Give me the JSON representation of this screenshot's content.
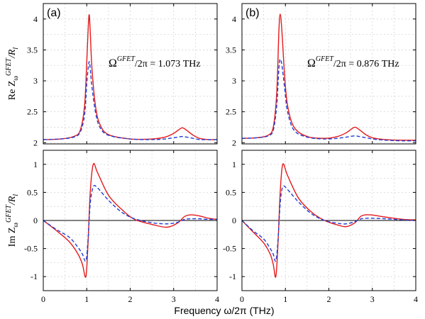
{
  "chart_data": {
    "type": "line",
    "xlabel": "Frequency ω/2π (THz)",
    "x_ticks": [
      "0",
      "1",
      "2",
      "3",
      "4"
    ],
    "xlim": [
      0,
      4
    ],
    "grid": true,
    "colors": {
      "solid": "#e41a1c",
      "dashed": "#1f3fd6",
      "zero_line": "#000000"
    },
    "rows": [
      {
        "ylabel_main": "Re Z",
        "ylabel_sub": "ω",
        "ylabel_sup": "GFET",
        "ylabel_tail": "/R",
        "ylabel_tail_sub": "l",
        "ylim": [
          1.98,
          4.25
        ],
        "y_ticks": [
          2,
          2.5,
          3,
          3.5,
          4
        ],
        "y_tick_labels": [
          "2",
          "2.5",
          "3",
          "3.5",
          "4"
        ],
        "zero_line": false
      },
      {
        "ylabel_main": "Im Z",
        "ylabel_sub": "ω",
        "ylabel_sup": "GFET",
        "ylabel_tail": "/R",
        "ylabel_tail_sub": "l",
        "ylim": [
          -1.25,
          1.25
        ],
        "y_ticks": [
          -1,
          -0.5,
          0,
          0.5,
          1
        ],
        "y_tick_labels": [
          "-1",
          "-0.5",
          "0",
          "0.5",
          "1"
        ],
        "zero_line": true
      }
    ],
    "panels": [
      {
        "label": "(a)",
        "annotation": "Ω",
        "annotation_sup": "GFET",
        "annotation_tail": "/2π = 1.073 THz",
        "re": {
          "x": [
            0,
            0.4,
            0.7,
            0.85,
            0.95,
            1.0,
            1.05,
            1.08,
            1.12,
            1.2,
            1.3,
            1.5,
            2.0,
            2.5,
            2.8,
            3.0,
            3.1,
            3.2,
            3.3,
            3.45,
            3.6,
            3.8,
            4.0
          ],
          "series": [
            {
              "name": "",
              "style": "solid",
              "values": [
                2.05,
                2.06,
                2.1,
                2.2,
                2.6,
                3.3,
                4.05,
                3.8,
                3.2,
                2.6,
                2.3,
                2.13,
                2.06,
                2.06,
                2.09,
                2.15,
                2.2,
                2.24,
                2.2,
                2.12,
                2.07,
                2.05,
                2.05
              ]
            },
            {
              "name": "",
              "style": "dashed",
              "values": [
                2.05,
                2.06,
                2.09,
                2.17,
                2.45,
                2.95,
                3.3,
                3.2,
                2.9,
                2.5,
                2.25,
                2.12,
                2.06,
                2.05,
                2.06,
                2.08,
                2.09,
                2.1,
                2.09,
                2.07,
                2.05,
                2.05,
                2.05
              ]
            }
          ]
        },
        "im": {
          "x": [
            0,
            0.3,
            0.6,
            0.8,
            0.9,
            0.98,
            1.03,
            1.08,
            1.15,
            1.25,
            1.5,
            1.8,
            2.1,
            2.5,
            2.85,
            3.1,
            3.25,
            3.4,
            3.6,
            3.8,
            4.0
          ],
          "series": [
            {
              "name": "",
              "style": "solid",
              "values": [
                0,
                -0.18,
                -0.38,
                -0.6,
                -0.78,
                -1.0,
                -0.4,
                0.5,
                1.0,
                0.85,
                0.45,
                0.2,
                0.02,
                -0.07,
                -0.12,
                -0.04,
                0.07,
                0.1,
                0.08,
                0.04,
                0.02
              ]
            },
            {
              "name": "",
              "style": "dashed",
              "values": [
                0,
                -0.16,
                -0.3,
                -0.48,
                -0.6,
                -0.72,
                -0.35,
                0.3,
                0.6,
                0.58,
                0.36,
                0.15,
                0.03,
                -0.04,
                -0.06,
                -0.03,
                0.02,
                0.03,
                0.03,
                0.02,
                0.02
              ]
            }
          ]
        }
      },
      {
        "label": "(b)",
        "annotation": "Ω",
        "annotation_sup": "GFET",
        "annotation_tail": "/2π = 0.876 THz",
        "re": {
          "x": [
            0,
            0.35,
            0.6,
            0.72,
            0.8,
            0.85,
            0.88,
            0.92,
            0.98,
            1.05,
            1.2,
            1.5,
            1.9,
            2.2,
            2.4,
            2.5,
            2.6,
            2.7,
            2.85,
            3.0,
            3.3,
            3.7,
            4.0
          ],
          "series": [
            {
              "name": "",
              "style": "solid",
              "values": [
                2.07,
                2.08,
                2.12,
                2.25,
                2.8,
                3.8,
                4.08,
                3.8,
                3.1,
                2.6,
                2.25,
                2.1,
                2.07,
                2.1,
                2.16,
                2.21,
                2.25,
                2.21,
                2.13,
                2.08,
                2.05,
                2.04,
                2.04
              ]
            },
            {
              "name": "",
              "style": "dashed",
              "values": [
                2.07,
                2.08,
                2.11,
                2.2,
                2.6,
                3.2,
                3.35,
                3.25,
                2.9,
                2.5,
                2.2,
                2.09,
                2.06,
                2.07,
                2.09,
                2.1,
                2.11,
                2.1,
                2.08,
                2.06,
                2.04,
                2.03,
                2.03
              ]
            }
          ]
        },
        "im": {
          "x": [
            0,
            0.25,
            0.5,
            0.65,
            0.72,
            0.78,
            0.83,
            0.88,
            0.94,
            1.05,
            1.3,
            1.6,
            1.9,
            2.2,
            2.4,
            2.6,
            2.75,
            2.95,
            3.3,
            3.7,
            4.0
          ],
          "series": [
            {
              "name": "",
              "style": "solid",
              "values": [
                0,
                -0.2,
                -0.4,
                -0.6,
                -0.78,
                -1.0,
                -0.4,
                0.5,
                1.0,
                0.8,
                0.4,
                0.15,
                0.0,
                -0.08,
                -0.11,
                -0.04,
                0.08,
                0.1,
                0.06,
                0.02,
                0.01
              ]
            },
            {
              "name": "",
              "style": "dashed",
              "values": [
                0,
                -0.18,
                -0.33,
                -0.5,
                -0.6,
                -0.72,
                -0.35,
                0.3,
                0.6,
                0.55,
                0.33,
                0.12,
                0.0,
                -0.05,
                -0.06,
                -0.02,
                0.03,
                0.04,
                0.03,
                0.01,
                0.0
              ]
            }
          ]
        }
      }
    ]
  }
}
